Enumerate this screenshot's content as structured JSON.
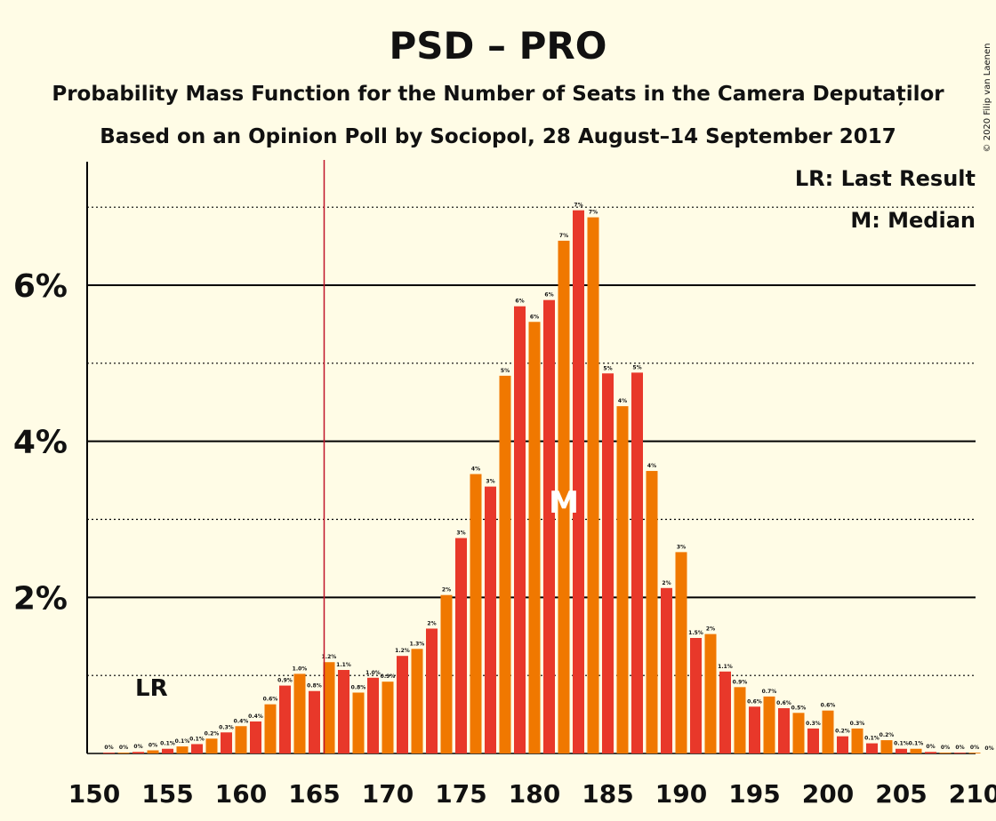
{
  "chart_data": {
    "type": "bar",
    "title": "PSD – PRO",
    "subtitle1": "Probability Mass Function for the Number of Seats in the Camera Deputaților",
    "subtitle2": "Based on an Opinion Poll by Sociopol, 28 August–14 September 2017",
    "copyright": "© 2020 Filip van Laenen",
    "legend": {
      "lr": "LR: Last Result",
      "median": "M: Median"
    },
    "last_result_label": "LR",
    "median_label": "M",
    "last_result_seat": 166,
    "median_seat": 182,
    "xlim": [
      150,
      210
    ],
    "ylim": [
      0,
      7.5
    ],
    "x_ticks": [
      "150",
      "155",
      "160",
      "165",
      "170",
      "175",
      "180",
      "185",
      "190",
      "195",
      "200",
      "205",
      "210"
    ],
    "y_ticks": [
      {
        "value": 2,
        "label": "2%"
      },
      {
        "value": 4,
        "label": "4%"
      },
      {
        "value": 6,
        "label": "6%"
      }
    ],
    "minor_gridlines": [
      1,
      3,
      5,
      7
    ],
    "colors": {
      "odd": "#E8382A",
      "even": "#F07800",
      "lr_line": "#C0152A",
      "background": "#FFFCE6"
    },
    "bars": [
      {
        "seat": 151,
        "value": 0.01,
        "label": "0%"
      },
      {
        "seat": 152,
        "value": 0.01,
        "label": "0%"
      },
      {
        "seat": 153,
        "value": 0.02,
        "label": "0%"
      },
      {
        "seat": 154,
        "value": 0.04,
        "label": "0%"
      },
      {
        "seat": 155,
        "value": 0.06,
        "label": "0.1%"
      },
      {
        "seat": 156,
        "value": 0.09,
        "label": "0.1%"
      },
      {
        "seat": 157,
        "value": 0.12,
        "label": "0.1%"
      },
      {
        "seat": 158,
        "value": 0.19,
        "label": "0.2%"
      },
      {
        "seat": 159,
        "value": 0.27,
        "label": "0.3%"
      },
      {
        "seat": 160,
        "value": 0.35,
        "label": "0.4%"
      },
      {
        "seat": 161,
        "value": 0.41,
        "label": "0.4%"
      },
      {
        "seat": 162,
        "value": 0.63,
        "label": "0.6%"
      },
      {
        "seat": 163,
        "value": 0.87,
        "label": "0.9%"
      },
      {
        "seat": 164,
        "value": 1.02,
        "label": "1.0%"
      },
      {
        "seat": 165,
        "value": 0.8,
        "label": "0.8%"
      },
      {
        "seat": 166,
        "value": 1.17,
        "label": "1.2%"
      },
      {
        "seat": 167,
        "value": 1.07,
        "label": "1.1%"
      },
      {
        "seat": 168,
        "value": 0.78,
        "label": "0.8%"
      },
      {
        "seat": 169,
        "value": 0.97,
        "label": "1.0%"
      },
      {
        "seat": 170,
        "value": 0.92,
        "label": "0.9%"
      },
      {
        "seat": 171,
        "value": 1.25,
        "label": "1.2%"
      },
      {
        "seat": 172,
        "value": 1.34,
        "label": "1.3%"
      },
      {
        "seat": 173,
        "value": 1.6,
        "label": "2%"
      },
      {
        "seat": 174,
        "value": 2.03,
        "label": "2%"
      },
      {
        "seat": 175,
        "value": 2.76,
        "label": "3%"
      },
      {
        "seat": 176,
        "value": 3.58,
        "label": "4%"
      },
      {
        "seat": 177,
        "value": 3.42,
        "label": "3%"
      },
      {
        "seat": 178,
        "value": 4.84,
        "label": "5%"
      },
      {
        "seat": 179,
        "value": 5.73,
        "label": "6%"
      },
      {
        "seat": 180,
        "value": 5.53,
        "label": "6%"
      },
      {
        "seat": 181,
        "value": 5.81,
        "label": "6%"
      },
      {
        "seat": 182,
        "value": 6.57,
        "label": "7%"
      },
      {
        "seat": 183,
        "value": 6.96,
        "label": "7%"
      },
      {
        "seat": 184,
        "value": 6.87,
        "label": "7%"
      },
      {
        "seat": 185,
        "value": 4.87,
        "label": "5%"
      },
      {
        "seat": 186,
        "value": 4.45,
        "label": "4%"
      },
      {
        "seat": 187,
        "value": 4.88,
        "label": "5%"
      },
      {
        "seat": 188,
        "value": 3.62,
        "label": "4%"
      },
      {
        "seat": 189,
        "value": 2.12,
        "label": "2%"
      },
      {
        "seat": 190,
        "value": 2.58,
        "label": "3%"
      },
      {
        "seat": 191,
        "value": 1.48,
        "label": "1.5%"
      },
      {
        "seat": 192,
        "value": 1.53,
        "label": "2%"
      },
      {
        "seat": 193,
        "value": 1.05,
        "label": "1.1%"
      },
      {
        "seat": 194,
        "value": 0.85,
        "label": "0.9%"
      },
      {
        "seat": 195,
        "value": 0.6,
        "label": "0.6%"
      },
      {
        "seat": 196,
        "value": 0.73,
        "label": "0.7%"
      },
      {
        "seat": 197,
        "value": 0.58,
        "label": "0.6%"
      },
      {
        "seat": 198,
        "value": 0.52,
        "label": "0.5%"
      },
      {
        "seat": 199,
        "value": 0.32,
        "label": "0.3%"
      },
      {
        "seat": 200,
        "value": 0.55,
        "label": "0.6%"
      },
      {
        "seat": 201,
        "value": 0.22,
        "label": "0.2%"
      },
      {
        "seat": 202,
        "value": 0.32,
        "label": "0.3%"
      },
      {
        "seat": 203,
        "value": 0.13,
        "label": "0.1%"
      },
      {
        "seat": 204,
        "value": 0.17,
        "label": "0.2%"
      },
      {
        "seat": 205,
        "value": 0.06,
        "label": "0.1%"
      },
      {
        "seat": 206,
        "value": 0.06,
        "label": "0.1%"
      },
      {
        "seat": 207,
        "value": 0.02,
        "label": "0%"
      },
      {
        "seat": 208,
        "value": 0.01,
        "label": "0%"
      },
      {
        "seat": 209,
        "value": 0.01,
        "label": "0%"
      },
      {
        "seat": 210,
        "value": 0.01,
        "label": "0%"
      },
      {
        "seat": 211,
        "value": 0.0,
        "label": "0%"
      }
    ]
  }
}
